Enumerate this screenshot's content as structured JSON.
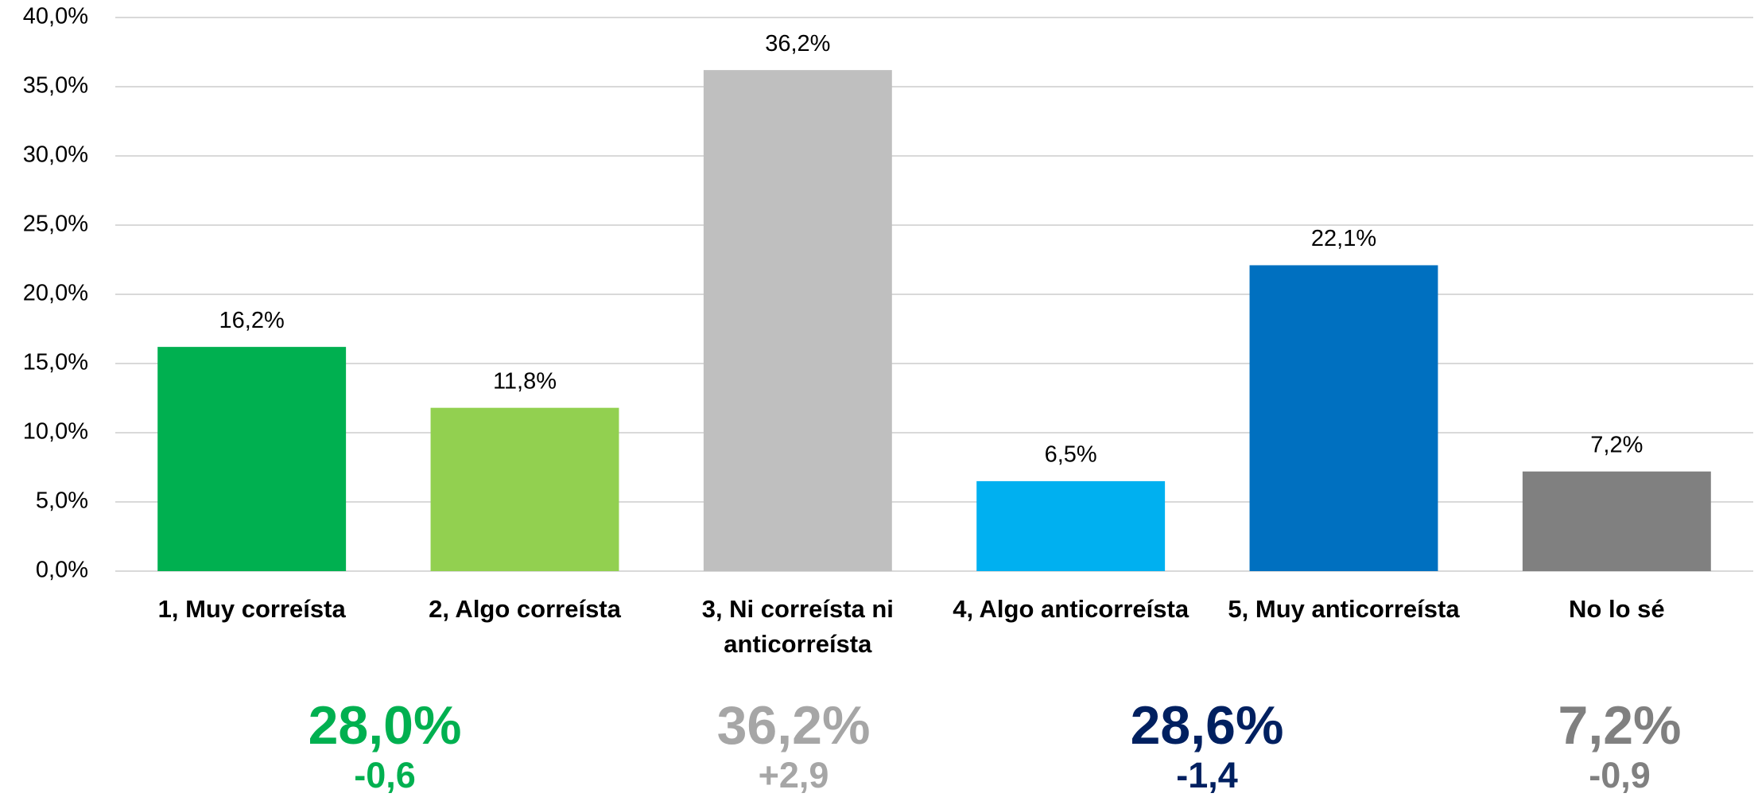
{
  "chart_data": {
    "type": "bar",
    "categories": [
      "1, Muy correísta",
      "2, Algo correísta",
      "3, Ni correísta ni anticorreísta",
      "4, Algo anticorreísta",
      "5, Muy anticorreísta",
      "No lo sé"
    ],
    "values": [
      16.2,
      11.8,
      36.2,
      6.5,
      22.1,
      7.2
    ],
    "value_labels": [
      "16,2%",
      "11,8%",
      "36,2%",
      "6,5%",
      "22,1%",
      "7,2%"
    ],
    "colors": [
      "#00b050",
      "#92d050",
      "#bfbfbf",
      "#00b0f0",
      "#0070c0",
      "#808080"
    ],
    "ylim": [
      0,
      40
    ],
    "yticks": [
      {
        "value": 0,
        "label": "0,0%"
      },
      {
        "value": 5,
        "label": "5,0%"
      },
      {
        "value": 10,
        "label": "10,0%"
      },
      {
        "value": 15,
        "label": "15,0%"
      },
      {
        "value": 20,
        "label": "20,0%"
      },
      {
        "value": 25,
        "label": "25,0%"
      },
      {
        "value": 30,
        "label": "30,0%"
      },
      {
        "value": 35,
        "label": "35,0%"
      },
      {
        "value": 40,
        "label": "40,0%"
      }
    ],
    "grid": true,
    "annotations": [
      {
        "text": "28,0%",
        "change": "-0,6",
        "color": "#00b050"
      },
      {
        "text": "36,2%",
        "change": "+2,9",
        "color": "#a6a6a6"
      },
      {
        "text": "28,6%",
        "change": "-1,4",
        "color": "#002060"
      },
      {
        "text": "7,2%",
        "change": "-0,9",
        "color": "#808080"
      }
    ]
  }
}
